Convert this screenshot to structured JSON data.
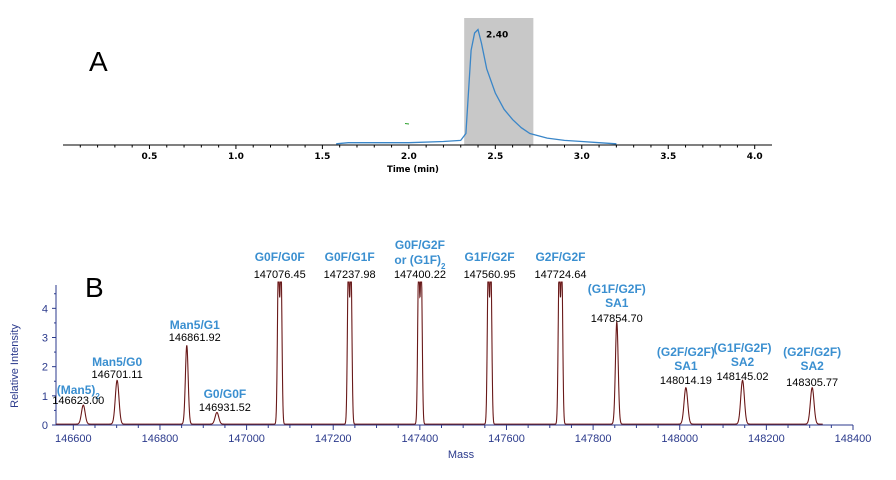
{
  "panels": {
    "a": "A",
    "b": "B"
  },
  "chart_data": [
    {
      "type": "line",
      "panel": "A",
      "xlabel": "Time (min)",
      "ylabel": "",
      "xlim": [
        0,
        4.1
      ],
      "xticks": [
        "0.5",
        "1.0",
        "1.5",
        "2.0",
        "2.5",
        "3.0",
        "3.5",
        "4.0"
      ],
      "highlight_range": [
        2.32,
        2.72
      ],
      "highlight_color": "#c8c8c8",
      "line_color": "#3a86c8",
      "peak_label": "2.40",
      "peak_x": 2.4,
      "x": [
        1.58,
        1.65,
        1.8,
        2.0,
        2.2,
        2.3,
        2.33,
        2.36,
        2.38,
        2.4,
        2.42,
        2.45,
        2.5,
        2.55,
        2.6,
        2.65,
        2.7,
        2.8,
        2.9,
        3.0,
        3.1,
        3.2
      ],
      "y": [
        0.01,
        0.02,
        0.02,
        0.02,
        0.03,
        0.04,
        0.1,
        0.82,
        0.97,
        1.0,
        0.88,
        0.66,
        0.45,
        0.31,
        0.22,
        0.15,
        0.1,
        0.06,
        0.04,
        0.03,
        0.02,
        0.01
      ],
      "ylim": [
        0,
        1.1
      ]
    },
    {
      "type": "line",
      "panel": "B",
      "xlabel": "Mass",
      "ylabel": "Relative Intensity",
      "xlim": [
        146560,
        148400
      ],
      "ylim": [
        0,
        4.8
      ],
      "xticks": [
        "146600",
        "146800",
        "147000",
        "147200",
        "147400",
        "147600",
        "147800",
        "148000",
        "148200",
        "148400"
      ],
      "yticks": [
        "0",
        "1",
        "2",
        "3",
        "4"
      ],
      "line_color": "#8b1a1a",
      "peaks": [
        {
          "mass": 146623.0,
          "height": 0.65,
          "glycan": "(Man5)",
          "subscript": "2",
          "value": "146623.00"
        },
        {
          "mass": 146701.11,
          "height": 1.5,
          "glycan": "Man5/G0",
          "value": "146701.11"
        },
        {
          "mass": 146861.92,
          "height": 2.7,
          "glycan": "Man5/G1",
          "value": "146861.92"
        },
        {
          "mass": 146931.52,
          "height": 0.4,
          "glycan": "G0/G0F",
          "value": "146931.52"
        },
        {
          "mass": 147076.45,
          "height": 5.5,
          "glycan": "G0F/G0F",
          "value": "147076.45",
          "double": true
        },
        {
          "mass": 147237.98,
          "height": 5.5,
          "glycan": "G0F/G1F",
          "value": "147237.98",
          "double": true
        },
        {
          "mass": 147400.22,
          "height": 5.5,
          "glycan": "G0F/G2F",
          "glycan2": "or (G1F)",
          "subscript": "2",
          "value": "147400.22",
          "double": true
        },
        {
          "mass": 147560.95,
          "height": 5.5,
          "glycan": "G1F/G2F",
          "value": "147560.95",
          "double": true
        },
        {
          "mass": 147724.64,
          "height": 5.5,
          "glycan": "G2F/G2F",
          "value": "147724.64",
          "double": true
        },
        {
          "mass": 147854.7,
          "height": 3.5,
          "glycan": "(G1F/G2F)",
          "glycan2": "SA1",
          "value": "147854.70"
        },
        {
          "mass": 148014.19,
          "height": 1.25,
          "glycan": "(G2F/G2F)",
          "glycan2": "SA1",
          "value": "148014.19"
        },
        {
          "mass": 148145.02,
          "height": 1.5,
          "glycan": "(G1F/G2F)",
          "glycan2": "SA2",
          "value": "148145.02"
        },
        {
          "mass": 148305.77,
          "height": 1.25,
          "glycan": "(G2F/G2F)",
          "glycan2": "SA2",
          "value": "148305.77"
        }
      ]
    }
  ]
}
